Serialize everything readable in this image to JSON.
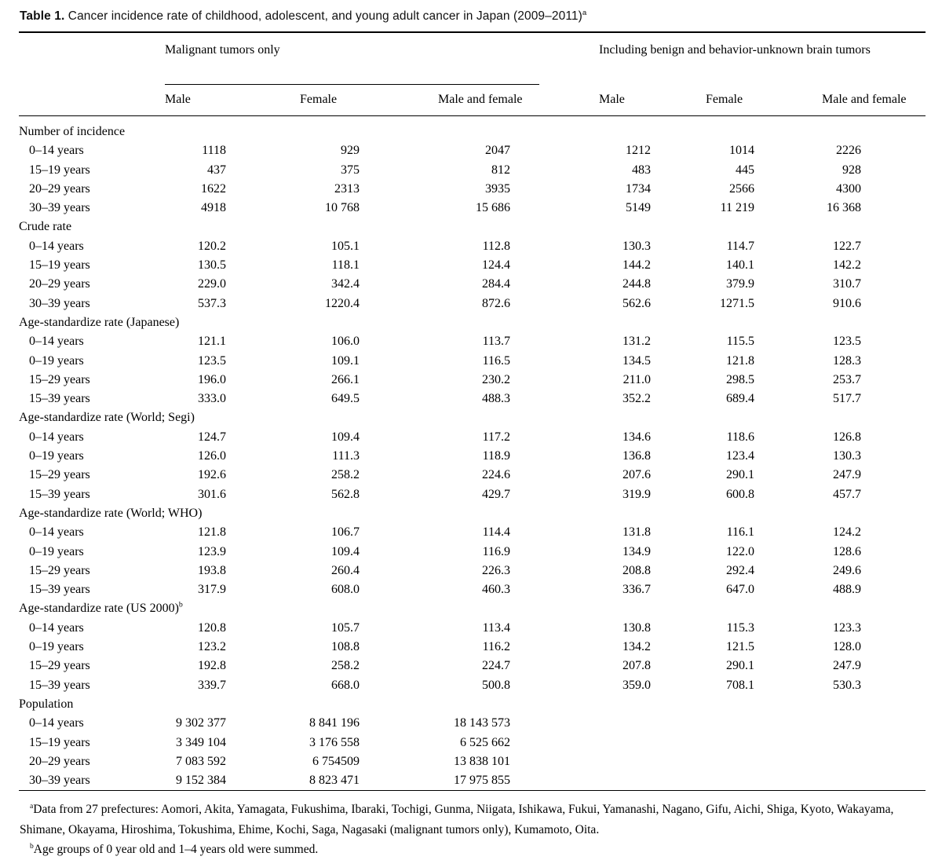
{
  "title": {
    "label": "Table 1.",
    "caption": " Cancer incidence rate of childhood, adolescent, and young adult cancer in Japan (2009–2011)",
    "sup": "a"
  },
  "table": {
    "group_headers": [
      {
        "label": "Malignant tumors only"
      },
      {
        "label": "Including benign and behavior-unknown brain tumors"
      }
    ],
    "column_headers": [
      "Male",
      "Female",
      "Male and female",
      "Male",
      "Female",
      "Male and female"
    ],
    "sections": [
      {
        "label": "Number of incidence",
        "sup": "",
        "rows": [
          {
            "label": "0–14 years",
            "values": [
              "1118",
              "929",
              "2047",
              "1212",
              "1014",
              "2226"
            ]
          },
          {
            "label": "15–19 years",
            "values": [
              "437",
              "375",
              "812",
              "483",
              "445",
              "928"
            ]
          },
          {
            "label": "20–29 years",
            "values": [
              "1622",
              "2313",
              "3935",
              "1734",
              "2566",
              "4300"
            ]
          },
          {
            "label": "30–39 years",
            "values": [
              "4918",
              "10 768",
              "15 686",
              "5149",
              "11 219",
              "16 368"
            ]
          }
        ]
      },
      {
        "label": "Crude rate",
        "sup": "",
        "rows": [
          {
            "label": "0–14 years",
            "values": [
              "120.2",
              "105.1",
              "112.8",
              "130.3",
              "114.7",
              "122.7"
            ]
          },
          {
            "label": "15–19 years",
            "values": [
              "130.5",
              "118.1",
              "124.4",
              "144.2",
              "140.1",
              "142.2"
            ]
          },
          {
            "label": "20–29 years",
            "values": [
              "229.0",
              "342.4",
              "284.4",
              "244.8",
              "379.9",
              "310.7"
            ]
          },
          {
            "label": "30–39 years",
            "values": [
              "537.3",
              "1220.4",
              "872.6",
              "562.6",
              "1271.5",
              "910.6"
            ]
          }
        ]
      },
      {
        "label": "Age-standardize rate (Japanese)",
        "sup": "",
        "rows": [
          {
            "label": "0–14 years",
            "values": [
              "121.1",
              "106.0",
              "113.7",
              "131.2",
              "115.5",
              "123.5"
            ]
          },
          {
            "label": "0–19 years",
            "values": [
              "123.5",
              "109.1",
              "116.5",
              "134.5",
              "121.8",
              "128.3"
            ]
          },
          {
            "label": "15–29 years",
            "values": [
              "196.0",
              "266.1",
              "230.2",
              "211.0",
              "298.5",
              "253.7"
            ]
          },
          {
            "label": "15–39 years",
            "values": [
              "333.0",
              "649.5",
              "488.3",
              "352.2",
              "689.4",
              "517.7"
            ]
          }
        ]
      },
      {
        "label": "Age-standardize rate (World; Segi)",
        "sup": "",
        "rows": [
          {
            "label": "0–14 years",
            "values": [
              "124.7",
              "109.4",
              "117.2",
              "134.6",
              "118.6",
              "126.8"
            ]
          },
          {
            "label": "0–19 years",
            "values": [
              "126.0",
              "111.3",
              "118.9",
              "136.8",
              "123.4",
              "130.3"
            ]
          },
          {
            "label": "15–29 years",
            "values": [
              "192.6",
              "258.2",
              "224.6",
              "207.6",
              "290.1",
              "247.9"
            ]
          },
          {
            "label": "15–39 years",
            "values": [
              "301.6",
              "562.8",
              "429.7",
              "319.9",
              "600.8",
              "457.7"
            ]
          }
        ]
      },
      {
        "label": "Age-standardize rate (World; WHO)",
        "sup": "",
        "rows": [
          {
            "label": "0–14 years",
            "values": [
              "121.8",
              "106.7",
              "114.4",
              "131.8",
              "116.1",
              "124.2"
            ]
          },
          {
            "label": "0–19 years",
            "values": [
              "123.9",
              "109.4",
              "116.9",
              "134.9",
              "122.0",
              "128.6"
            ]
          },
          {
            "label": "15–29 years",
            "values": [
              "193.8",
              "260.4",
              "226.3",
              "208.8",
              "292.4",
              "249.6"
            ]
          },
          {
            "label": "15–39 years",
            "values": [
              "317.9",
              "608.0",
              "460.3",
              "336.7",
              "647.0",
              "488.9"
            ]
          }
        ]
      },
      {
        "label": "Age-standardize rate (US 2000)",
        "sup": "b",
        "rows": [
          {
            "label": "0–14 years",
            "values": [
              "120.8",
              "105.7",
              "113.4",
              "130.8",
              "115.3",
              "123.3"
            ]
          },
          {
            "label": "0–19 years",
            "values": [
              "123.2",
              "108.8",
              "116.2",
              "134.2",
              "121.5",
              "128.0"
            ]
          },
          {
            "label": "15–29 years",
            "values": [
              "192.8",
              "258.2",
              "224.7",
              "207.8",
              "290.1",
              "247.9"
            ]
          },
          {
            "label": "15–39 years",
            "values": [
              "339.7",
              "668.0",
              "500.8",
              "359.0",
              "708.1",
              "530.3"
            ]
          }
        ]
      },
      {
        "label": "Population",
        "sup": "",
        "rows": [
          {
            "label": "0–14 years",
            "values": [
              "9 302 377",
              "8 841 196",
              "18 143 573",
              "",
              "",
              ""
            ]
          },
          {
            "label": "15–19 years",
            "values": [
              "3 349 104",
              "3 176 558",
              "6 525 662",
              "",
              "",
              ""
            ]
          },
          {
            "label": "20–29 years",
            "values": [
              "7 083 592",
              "6 754509",
              "13 838 101",
              "",
              "",
              ""
            ]
          },
          {
            "label": "30–39 years",
            "values": [
              "9 152 384",
              "8 823 471",
              "17 975 855",
              "",
              "",
              ""
            ]
          }
        ]
      }
    ]
  },
  "footnotes": [
    {
      "marker": "a",
      "text": "Data from 27 prefectures: Aomori, Akita, Yamagata, Fukushima, Ibaraki, Tochigi, Gunma, Niigata, Ishikawa, Fukui, Yamanashi, Nagano, Gifu, Aichi, Shiga, Kyoto, Wakayama, Shimane, Okayama, Hiroshima, Tokushima, Ehime, Kochi, Saga, Nagasaki (malignant tumors only), Kumamoto, Oita."
    },
    {
      "marker": "b",
      "text": "Age groups of 0 year old and 1–4 years old were summed."
    }
  ]
}
